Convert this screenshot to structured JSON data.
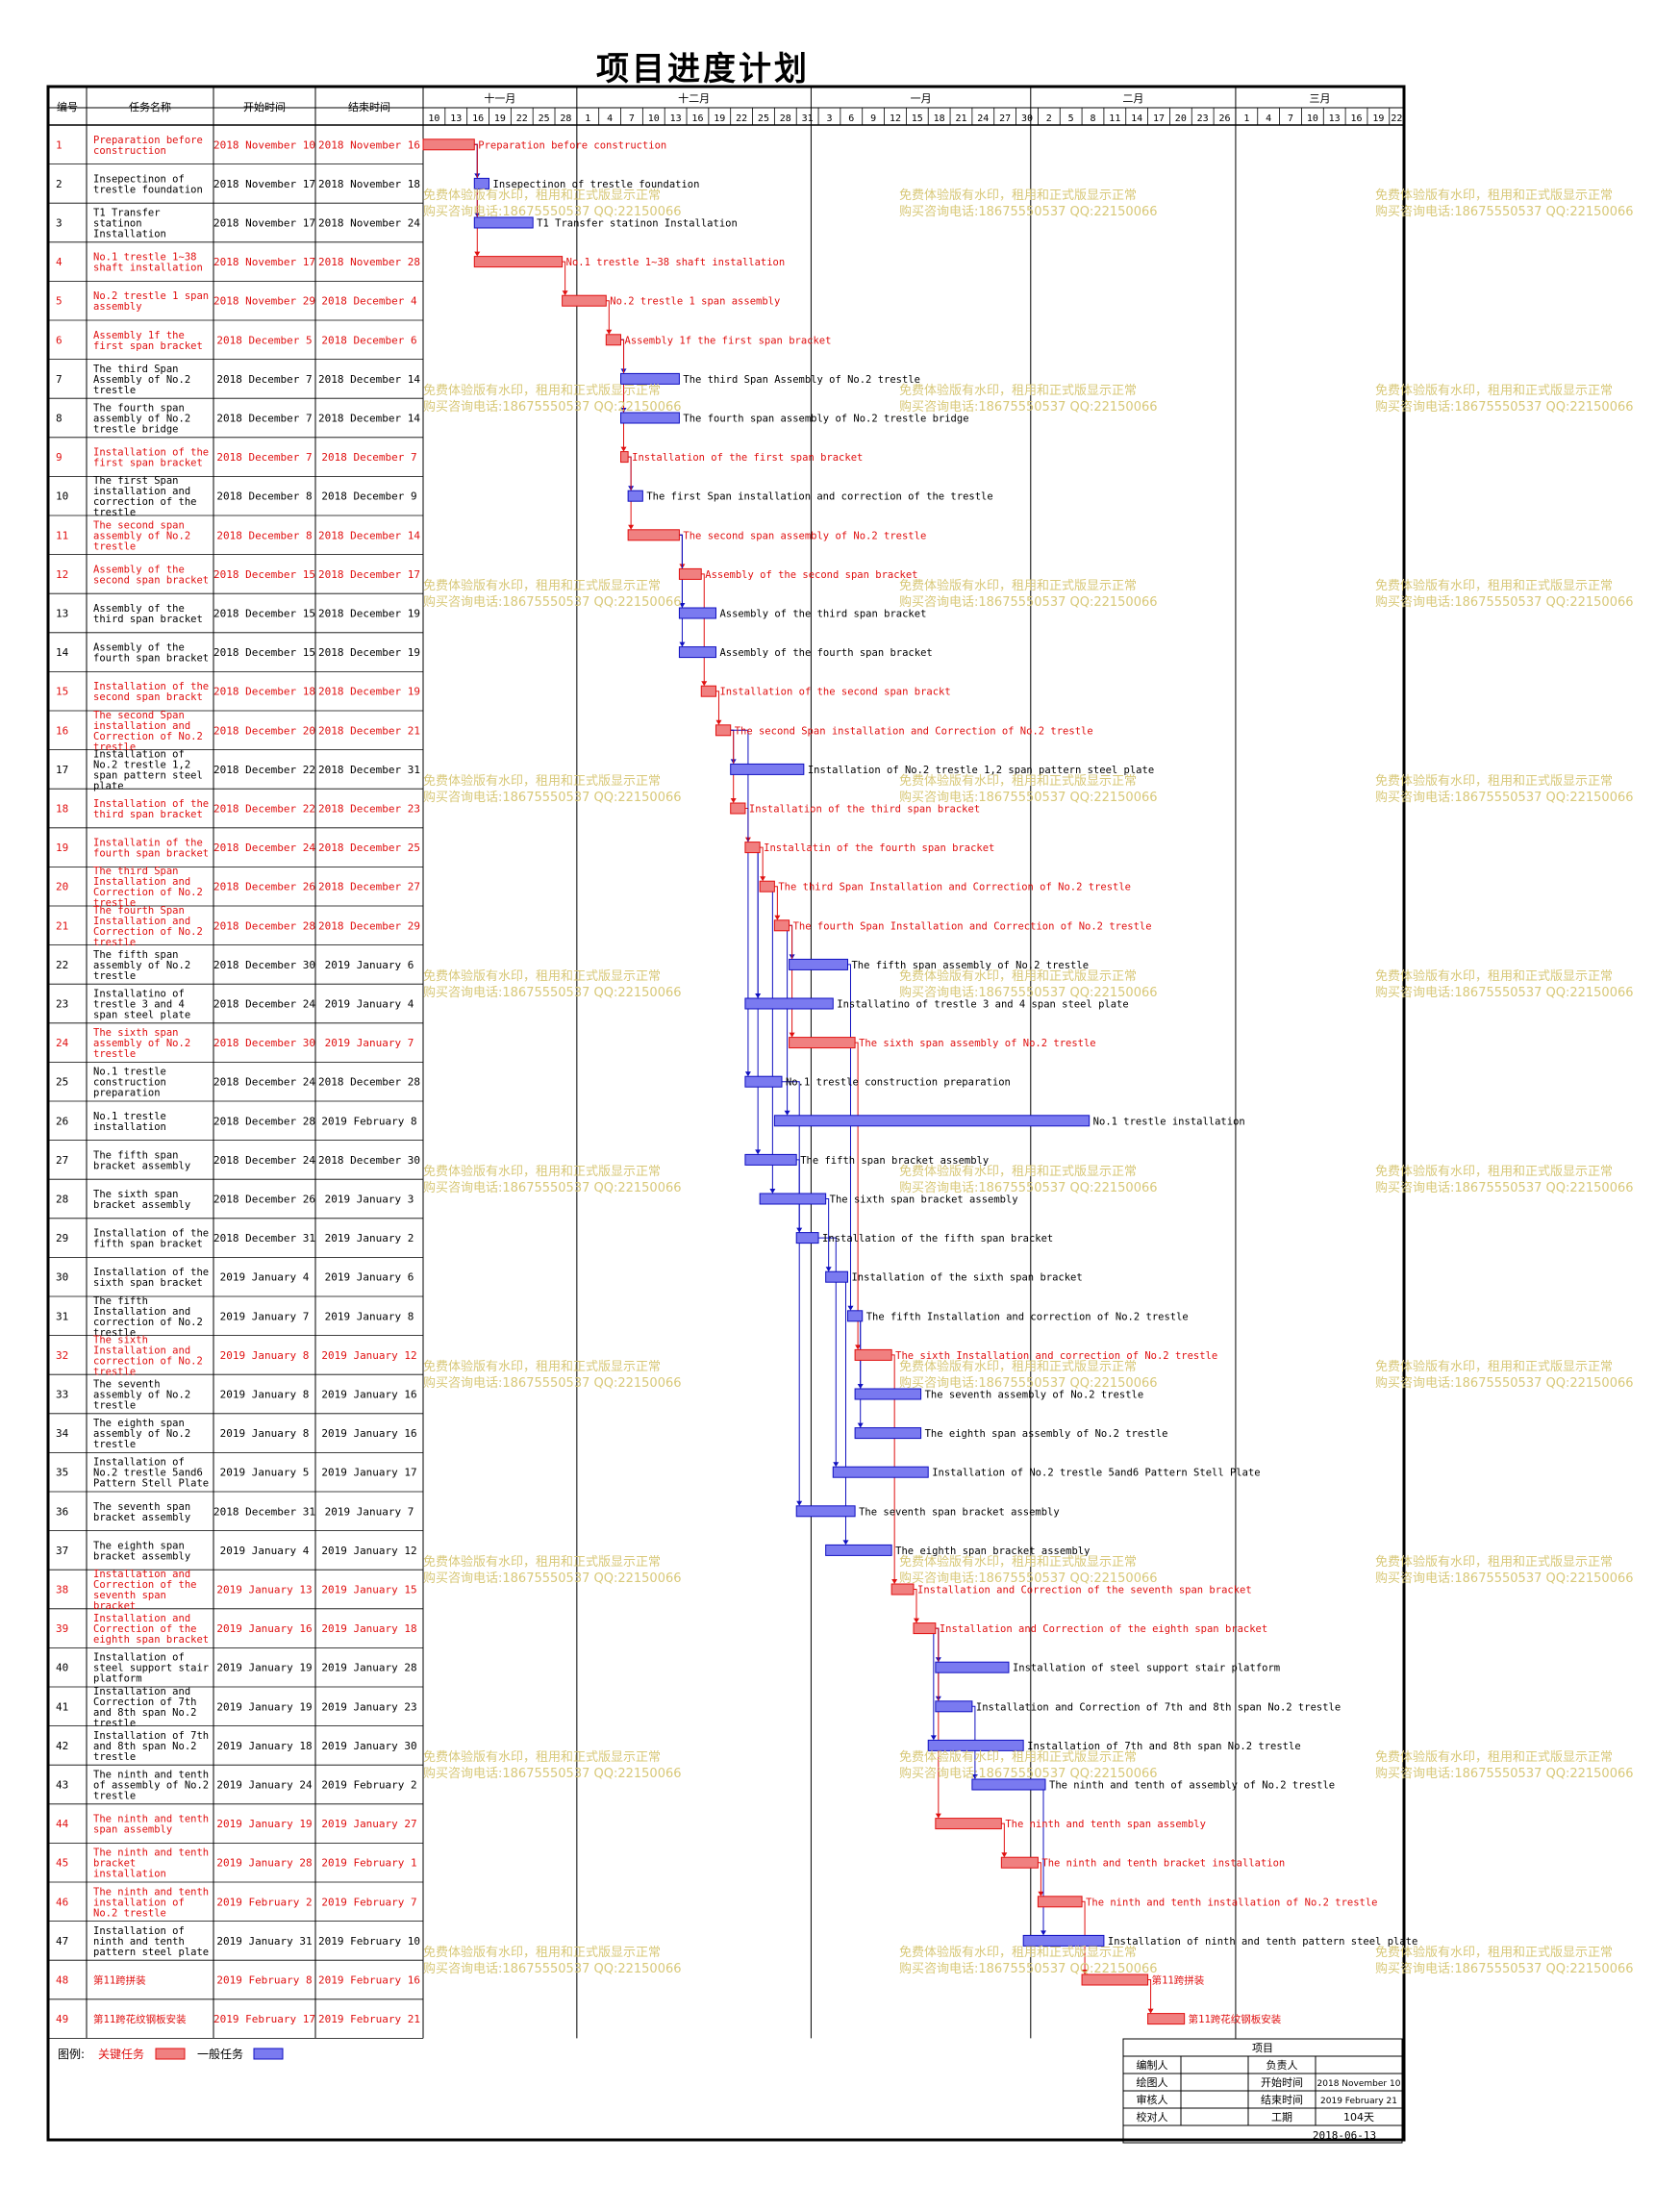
{
  "title": "项目进度计划",
  "headers": {
    "id": "编号",
    "name": "任务名称",
    "start": "开始时间",
    "end": "结束时间"
  },
  "months": [
    "十一月",
    "十二月",
    "一月",
    "二月",
    "三月"
  ],
  "week_days": [
    [
      "10",
      "13",
      "16",
      "19",
      "22",
      "25",
      "28"
    ],
    [
      "1",
      "4",
      "7",
      "10",
      "13",
      "16",
      "19",
      "22",
      "25",
      "28",
      "31"
    ],
    [
      "3",
      "6",
      "9",
      "12",
      "15",
      "18",
      "21",
      "24",
      "27",
      "30"
    ],
    [
      "2",
      "5",
      "8",
      "11",
      "14",
      "17",
      "20",
      "23",
      "26"
    ],
    [
      "1",
      "4",
      "7",
      "10",
      "13",
      "16",
      "19",
      "22"
    ]
  ],
  "watermark": [
    "免费体验版有水印，租用和正式版显示正常",
    "购买咨询电话:18675550537 QQ:22150066"
  ],
  "colors": {
    "critical_fill": "#f08080",
    "critical_stroke": "#e01010",
    "normal_fill": "#7a7af0",
    "normal_stroke": "#1010c0",
    "watermark": "#d8c878"
  },
  "legend": {
    "label": "图例:",
    "critical": "关键任务",
    "normal": "一般任务"
  },
  "footer": {
    "project_label": "项目",
    "rows": [
      [
        "编制人",
        "",
        "负责人",
        ""
      ],
      [
        "绘图人",
        "",
        "开始时间",
        "2018 November 10"
      ],
      [
        "审核人",
        "",
        "结束时间",
        "2019 February 21"
      ],
      [
        "校对人",
        "",
        "工期",
        "104天"
      ]
    ],
    "date": "2018-06-13"
  },
  "chart_data": {
    "type": "gantt",
    "x_start": "2018-11-10",
    "x_end": "2019-03-24",
    "tasks": [
      {
        "id": "1",
        "name": "Preparation before construction",
        "start_label": "2018 November 10",
        "end_label": "2018 November 16",
        "start": "2018-11-10",
        "end": "2018-11-16",
        "critical": true
      },
      {
        "id": "2",
        "name": "Insepectinon of trestle foundation",
        "start_label": "2018 November 17",
        "end_label": "2018 November 18",
        "start": "2018-11-17",
        "end": "2018-11-18",
        "critical": false
      },
      {
        "id": "3",
        "name": "T1 Transfer statinon Installation",
        "start_label": "2018 November 17",
        "end_label": "2018 November 24",
        "start": "2018-11-17",
        "end": "2018-11-24",
        "critical": false
      },
      {
        "id": "4",
        "name": "No.1 trestle 1~38 shaft installation",
        "start_label": "2018 November 17",
        "end_label": "2018 November 28",
        "start": "2018-11-17",
        "end": "2018-11-28",
        "critical": true
      },
      {
        "id": "5",
        "name": "No.2 trestle 1 span assembly",
        "start_label": "2018 November 29",
        "end_label": "2018 December 4",
        "start": "2018-11-29",
        "end": "2018-12-04",
        "critical": true
      },
      {
        "id": "6",
        "name": "Assembly 1f the first span bracket",
        "start_label": "2018 December 5",
        "end_label": "2018 December 6",
        "start": "2018-12-05",
        "end": "2018-12-06",
        "critical": true
      },
      {
        "id": "7",
        "name": "The third Span Assembly of No.2 trestle",
        "start_label": "2018 December 7",
        "end_label": "2018 December 14",
        "start": "2018-12-07",
        "end": "2018-12-14",
        "critical": false
      },
      {
        "id": "8",
        "name": "The fourth span assembly of No.2 trestle bridge",
        "start_label": "2018 December 7",
        "end_label": "2018 December 14",
        "start": "2018-12-07",
        "end": "2018-12-14",
        "critical": false
      },
      {
        "id": "9",
        "name": "Installation of the first span bracket",
        "start_label": "2018 December 7",
        "end_label": "2018 December 7",
        "start": "2018-12-07",
        "end": "2018-12-07",
        "critical": true
      },
      {
        "id": "10",
        "name": "The first Span installation and correction of the trestle",
        "start_label": "2018 December 8",
        "end_label": "2018 December 9",
        "start": "2018-12-08",
        "end": "2018-12-09",
        "critical": false
      },
      {
        "id": "11",
        "name": "The second span assembly of No.2 trestle",
        "start_label": "2018 December 8",
        "end_label": "2018 December 14",
        "start": "2018-12-08",
        "end": "2018-12-14",
        "critical": true
      },
      {
        "id": "12",
        "name": "Assembly of the second span bracket",
        "start_label": "2018 December 15",
        "end_label": "2018 December 17",
        "start": "2018-12-15",
        "end": "2018-12-17",
        "critical": true
      },
      {
        "id": "13",
        "name": "Assembly of the third span bracket",
        "start_label": "2018 December 15",
        "end_label": "2018 December 19",
        "start": "2018-12-15",
        "end": "2018-12-19",
        "critical": false
      },
      {
        "id": "14",
        "name": "Assembly of the fourth span bracket",
        "start_label": "2018 December 15",
        "end_label": "2018 December 19",
        "start": "2018-12-15",
        "end": "2018-12-19",
        "critical": false
      },
      {
        "id": "15",
        "name": "Installation of the second span brackt",
        "start_label": "2018 December 18",
        "end_label": "2018 December 19",
        "start": "2018-12-18",
        "end": "2018-12-19",
        "critical": true
      },
      {
        "id": "16",
        "name": "The second Span installation and Correction of No.2 trestle",
        "start_label": "2018 December 20",
        "end_label": "2018 December 21",
        "start": "2018-12-20",
        "end": "2018-12-21",
        "critical": true
      },
      {
        "id": "17",
        "name": "Installation of No.2 trestle 1,2 span pattern steel plate",
        "start_label": "2018 December 22",
        "end_label": "2018 December 31",
        "start": "2018-12-22",
        "end": "2018-12-31",
        "critical": false
      },
      {
        "id": "18",
        "name": "Installation of the third span bracket",
        "start_label": "2018 December 22",
        "end_label": "2018 December 23",
        "start": "2018-12-22",
        "end": "2018-12-23",
        "critical": true
      },
      {
        "id": "19",
        "name": "Installatin of the fourth span bracket",
        "start_label": "2018 December 24",
        "end_label": "2018 December 25",
        "start": "2018-12-24",
        "end": "2018-12-25",
        "critical": true
      },
      {
        "id": "20",
        "name": "The third Span Installation and Correction of No.2 trestle",
        "start_label": "2018 December 26",
        "end_label": "2018 December 27",
        "start": "2018-12-26",
        "end": "2018-12-27",
        "critical": true
      },
      {
        "id": "21",
        "name": "The fourth Span Installation and Correction of No.2 trestle",
        "start_label": "2018 December 28",
        "end_label": "2018 December 29",
        "start": "2018-12-28",
        "end": "2018-12-29",
        "critical": true
      },
      {
        "id": "22",
        "name": "The fifth span assembly of No.2 trestle",
        "start_label": "2018 December 30",
        "end_label": "2019 January 6",
        "start": "2018-12-30",
        "end": "2019-01-06",
        "critical": false
      },
      {
        "id": "23",
        "name": "Installatino of trestle 3 and 4 span steel plate",
        "start_label": "2018 December 24",
        "end_label": "2019 January 4",
        "start": "2018-12-24",
        "end": "2019-01-04",
        "critical": false
      },
      {
        "id": "24",
        "name": "The sixth span assembly of No.2 trestle",
        "start_label": "2018 December 30",
        "end_label": "2019 January 7",
        "start": "2018-12-30",
        "end": "2019-01-07",
        "critical": true
      },
      {
        "id": "25",
        "name": "No.1 trestle construction preparation",
        "start_label": "2018 December 24",
        "end_label": "2018 December 28",
        "start": "2018-12-24",
        "end": "2018-12-28",
        "critical": false
      },
      {
        "id": "26",
        "name": "No.1 trestle installation",
        "start_label": "2018 December 28",
        "end_label": "2019 February 8",
        "start": "2018-12-28",
        "end": "2019-02-08",
        "critical": false
      },
      {
        "id": "27",
        "name": "The fifth span bracket assembly",
        "start_label": "2018 December 24",
        "end_label": "2018 December 30",
        "start": "2018-12-24",
        "end": "2018-12-30",
        "critical": false
      },
      {
        "id": "28",
        "name": "The sixth span bracket assembly",
        "start_label": "2018 December 26",
        "end_label": "2019 January 3",
        "start": "2018-12-26",
        "end": "2019-01-03",
        "critical": false
      },
      {
        "id": "29",
        "name": "Installation of the fifth span bracket",
        "start_label": "2018 December 31",
        "end_label": "2019 January 2",
        "start": "2018-12-31",
        "end": "2019-01-02",
        "critical": false
      },
      {
        "id": "30",
        "name": "Installation of the sixth span bracket",
        "start_label": "2019 January 4",
        "end_label": "2019 January 6",
        "start": "2019-01-04",
        "end": "2019-01-06",
        "critical": false
      },
      {
        "id": "31",
        "name": "The fifth Installation and correction of No.2 trestle",
        "start_label": "2019 January 7",
        "end_label": "2019 January 8",
        "start": "2019-01-07",
        "end": "2019-01-08",
        "critical": false
      },
      {
        "id": "32",
        "name": "The sixth Installation and correction of No.2 trestle",
        "start_label": "2019 January 8",
        "end_label": "2019 January 12",
        "start": "2019-01-08",
        "end": "2019-01-12",
        "critical": true
      },
      {
        "id": "33",
        "name": "The seventh assembly of No.2 trestle",
        "start_label": "2019 January 8",
        "end_label": "2019 January 16",
        "start": "2019-01-08",
        "end": "2019-01-16",
        "critical": false
      },
      {
        "id": "34",
        "name": "The eighth span assembly of No.2 trestle",
        "start_label": "2019 January 8",
        "end_label": "2019 January 16",
        "start": "2019-01-08",
        "end": "2019-01-16",
        "critical": false
      },
      {
        "id": "35",
        "name": "Installation of No.2 trestle 5and6 Pattern Stell Plate",
        "start_label": "2019 January 5",
        "end_label": "2019 January 17",
        "start": "2019-01-05",
        "end": "2019-01-17",
        "critical": false
      },
      {
        "id": "36",
        "name": "The seventh span bracket assembly",
        "start_label": "2018 December 31",
        "end_label": "2019 January 7",
        "start": "2018-12-31",
        "end": "2019-01-07",
        "critical": false
      },
      {
        "id": "37",
        "name": "The eighth span bracket assembly",
        "start_label": "2019 January 4",
        "end_label": "2019 January 12",
        "start": "2019-01-04",
        "end": "2019-01-12",
        "critical": false
      },
      {
        "id": "38",
        "name": "Installation and Correction of the seventh span bracket",
        "start_label": "2019 January 13",
        "end_label": "2019 January 15",
        "start": "2019-01-13",
        "end": "2019-01-15",
        "critical": true
      },
      {
        "id": "39",
        "name": "Installation and Correction of the eighth span bracket",
        "start_label": "2019 January 16",
        "end_label": "2019 January 18",
        "start": "2019-01-16",
        "end": "2019-01-18",
        "critical": true
      },
      {
        "id": "40",
        "name": "Installation of steel support stair platform",
        "start_label": "2019 January 19",
        "end_label": "2019 January 28",
        "start": "2019-01-19",
        "end": "2019-01-28",
        "critical": false
      },
      {
        "id": "41",
        "name": "Installation and Correction of 7th and 8th span No.2 trestle",
        "start_label": "2019 January 19",
        "end_label": "2019 January 23",
        "start": "2019-01-19",
        "end": "2019-01-23",
        "critical": false
      },
      {
        "id": "42",
        "name": "Installation of 7th and 8th span No.2 trestle",
        "start_label": "2019 January 18",
        "end_label": "2019 January 30",
        "start": "2019-01-18",
        "end": "2019-01-30",
        "critical": false
      },
      {
        "id": "43",
        "name": "The ninth and tenth of assembly of No.2 trestle",
        "start_label": "2019 January 24",
        "end_label": "2019 February 2",
        "start": "2019-01-24",
        "end": "2019-02-02",
        "critical": false
      },
      {
        "id": "44",
        "name": "The ninth and tenth span assembly",
        "start_label": "2019 January 19",
        "end_label": "2019 January 27",
        "start": "2019-01-19",
        "end": "2019-01-27",
        "critical": true
      },
      {
        "id": "45",
        "name": "The ninth and tenth bracket installation",
        "start_label": "2019 January 28",
        "end_label": "2019 February 1",
        "start": "2019-01-28",
        "end": "2019-02-01",
        "critical": true
      },
      {
        "id": "46",
        "name": "The ninth and tenth installation of No.2 trestle",
        "start_label": "2019 February 2",
        "end_label": "2019 February 7",
        "start": "2019-02-02",
        "end": "2019-02-07",
        "critical": true
      },
      {
        "id": "47",
        "name": "Installation of ninth and tenth pattern steel plate",
        "start_label": "2019 January 31",
        "end_label": "2019 February 10",
        "start": "2019-01-31",
        "end": "2019-02-10",
        "critical": false
      },
      {
        "id": "48",
        "name": "第11跨拼装",
        "start_label": "2019 February 8",
        "end_label": "2019 February 16",
        "start": "2019-02-08",
        "end": "2019-02-16",
        "critical": true
      },
      {
        "id": "49",
        "name": "第11跨花纹钢板安装",
        "start_label": "2019 February 17",
        "end_label": "2019 February 21",
        "start": "2019-02-17",
        "end": "2019-02-21",
        "critical": true
      }
    ],
    "links": [
      [
        1,
        2
      ],
      [
        1,
        3
      ],
      [
        1,
        4
      ],
      [
        4,
        5
      ],
      [
        5,
        6
      ],
      [
        6,
        7
      ],
      [
        6,
        8
      ],
      [
        6,
        9
      ],
      [
        9,
        10
      ],
      [
        9,
        11
      ],
      [
        11,
        12
      ],
      [
        11,
        13
      ],
      [
        11,
        14
      ],
      [
        12,
        15
      ],
      [
        15,
        16
      ],
      [
        16,
        17
      ],
      [
        16,
        18
      ],
      [
        18,
        19
      ],
      [
        19,
        20
      ],
      [
        20,
        21
      ],
      [
        21,
        22
      ],
      [
        21,
        24
      ],
      [
        19,
        23
      ],
      [
        16,
        25
      ],
      [
        21,
        26
      ],
      [
        19,
        27
      ],
      [
        20,
        28
      ],
      [
        27,
        29
      ],
      [
        28,
        30
      ],
      [
        22,
        31
      ],
      [
        24,
        32
      ],
      [
        31,
        33
      ],
      [
        31,
        34
      ],
      [
        29,
        35
      ],
      [
        25,
        36
      ],
      [
        30,
        37
      ],
      [
        32,
        38
      ],
      [
        38,
        39
      ],
      [
        39,
        40
      ],
      [
        39,
        41
      ],
      [
        39,
        42
      ],
      [
        41,
        43
      ],
      [
        39,
        44
      ],
      [
        44,
        45
      ],
      [
        45,
        46
      ],
      [
        43,
        47
      ],
      [
        46,
        48
      ],
      [
        48,
        49
      ]
    ]
  }
}
